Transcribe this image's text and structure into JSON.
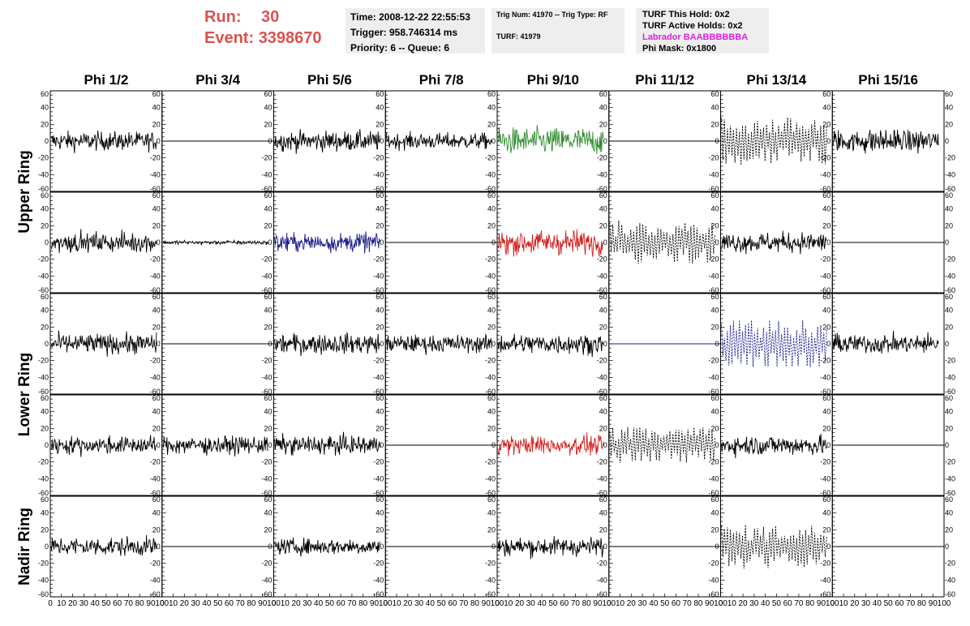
{
  "header": {
    "run_label": "Run:",
    "run_value": "30",
    "event_label": "Event:",
    "event_value": "3398670",
    "time": "Time: 2008-12-22 22:55:53",
    "trigger": "Trigger: 958.746314 ms",
    "priority_queue": "Priority: 6 -- Queue: 6",
    "trig_num_type": "Trig Num: 41970 -- Trig Type: RF",
    "turf": "TURF: 41979",
    "turf_this_hold": "TURF This Hold: 0x2",
    "turf_active_holds": "TURF Active Holds: 0x2",
    "labrador": "Labrador BAABBBBBBA",
    "phi_mask": "Phi Mask: 0x1800"
  },
  "colors": {
    "header_red": "#d9534f",
    "labrador_pink": "#e020e0",
    "info_bg": "#eeeeee",
    "black": "#000000",
    "green": "#2e8b2e",
    "blue": "#1c1c8c",
    "red": "#d02020"
  },
  "chart_data": {
    "type": "line",
    "columns": [
      "Phi 1/2",
      "Phi 3/4",
      "Phi 5/6",
      "Phi 7/8",
      "Phi 9/10",
      "Phi 11/12",
      "Phi 13/14",
      "Phi 15/16"
    ],
    "row_groups": [
      {
        "label": "Upper Ring",
        "rows": [
          0,
          1
        ]
      },
      {
        "label": "Lower Ring",
        "rows": [
          2,
          3
        ]
      },
      {
        "label": "Nadir Ring",
        "rows": [
          4
        ]
      }
    ],
    "xlim": [
      0,
      100
    ],
    "ylim": [
      -60,
      60
    ],
    "x_tick_labels": [
      "0",
      "10",
      "20",
      "30",
      "40",
      "50",
      "60",
      "70",
      "80",
      "90",
      "100"
    ],
    "y_tick_labels": [
      "60",
      "40",
      "20",
      "0",
      "-20",
      "-40",
      "-60"
    ],
    "panels": [
      [
        {
          "style": "noise",
          "color": "black",
          "amp": 14
        },
        {
          "style": "flat",
          "color": "black"
        },
        {
          "style": "noise",
          "color": "black",
          "amp": 15
        },
        {
          "style": "noise",
          "color": "black",
          "amp": 12
        },
        {
          "style": "noise",
          "color": "green",
          "amp": 20
        },
        {
          "style": "flat",
          "color": "black"
        },
        {
          "style": "dashed",
          "color": "black",
          "amp": 24
        },
        {
          "style": "noise",
          "color": "black",
          "amp": 17
        }
      ],
      [
        {
          "style": "noise",
          "color": "black",
          "amp": 14
        },
        {
          "style": "small",
          "color": "black",
          "amp": 3
        },
        {
          "style": "noise",
          "color": "blue",
          "amp": 14
        },
        {
          "style": "flat",
          "color": "black"
        },
        {
          "style": "noise",
          "color": "red",
          "amp": 18
        },
        {
          "style": "dashed",
          "color": "black",
          "amp": 22
        },
        {
          "style": "noise",
          "color": "black",
          "amp": 15
        },
        {
          "style": "flat",
          "color": "black"
        }
      ],
      [
        {
          "style": "noise",
          "color": "black",
          "amp": 15
        },
        {
          "style": "flat",
          "color": "black"
        },
        {
          "style": "noise",
          "color": "black",
          "amp": 15
        },
        {
          "style": "noise",
          "color": "black",
          "amp": 13
        },
        {
          "style": "noise",
          "color": "black",
          "amp": 15
        },
        {
          "style": "flat",
          "color": "blue"
        },
        {
          "style": "dashed",
          "color": "blue",
          "amp": 24
        },
        {
          "style": "noise",
          "color": "black",
          "amp": 14
        }
      ],
      [
        {
          "style": "noise",
          "color": "black",
          "amp": 13
        },
        {
          "style": "noise",
          "color": "black",
          "amp": 13
        },
        {
          "style": "noise",
          "color": "black",
          "amp": 14
        },
        {
          "style": "flat",
          "color": "black"
        },
        {
          "style": "noise",
          "color": "red",
          "amp": 14
        },
        {
          "style": "dashed",
          "color": "black",
          "amp": 18
        },
        {
          "style": "noise",
          "color": "black",
          "amp": 15
        },
        {
          "style": "flat",
          "color": "black"
        }
      ],
      [
        {
          "style": "noise",
          "color": "black",
          "amp": 14
        },
        {
          "style": "flat",
          "color": "black"
        },
        {
          "style": "noise",
          "color": "black",
          "amp": 12
        },
        {
          "style": "flat",
          "color": "black"
        },
        {
          "style": "noise",
          "color": "black",
          "amp": 14
        },
        {
          "style": "flat",
          "color": "black"
        },
        {
          "style": "dashed",
          "color": "black",
          "amp": 22
        },
        {
          "style": "flat",
          "color": "black"
        }
      ]
    ]
  }
}
